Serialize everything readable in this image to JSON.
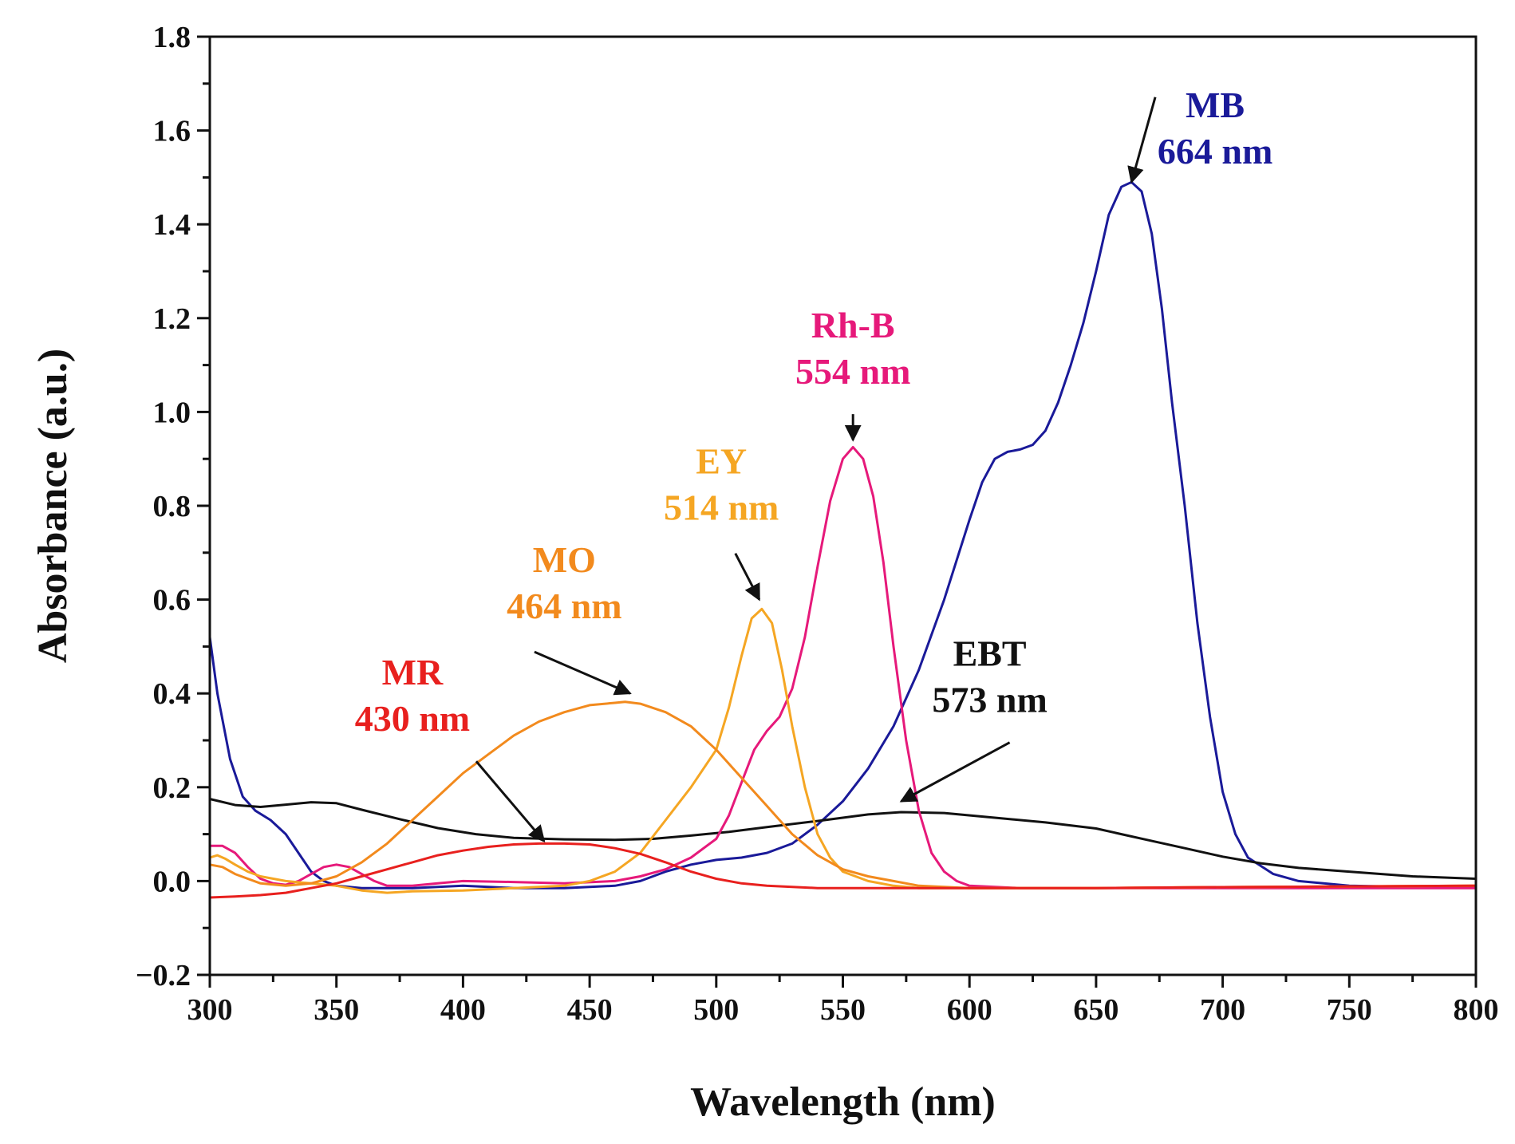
{
  "chart_data": {
    "type": "line",
    "title": "",
    "xlabel": "Wavelength (nm)",
    "ylabel": "Absorbance (a.u.)",
    "xlim": [
      300,
      800
    ],
    "ylim": [
      -0.2,
      1.8
    ],
    "x_ticks": [
      300,
      350,
      400,
      450,
      500,
      550,
      600,
      650,
      700,
      750,
      800
    ],
    "x_tick_labels": [
      "300",
      "350",
      "400",
      "450",
      "500",
      "550",
      "600",
      "650",
      "700",
      "750",
      "800"
    ],
    "y_ticks": [
      -0.2,
      0.0,
      0.2,
      0.4,
      0.6,
      0.8,
      1.0,
      1.2,
      1.4,
      1.6,
      1.8
    ],
    "y_tick_labels": [
      "−0.2",
      "0.0",
      "0.2",
      "0.4",
      "0.6",
      "0.8",
      "1.0",
      "1.2",
      "1.4",
      "1.6",
      "1.8"
    ],
    "grid": false,
    "series": [
      {
        "name": "MB",
        "color": "#1a1a99",
        "points": [
          [
            300,
            0.52
          ],
          [
            303,
            0.4
          ],
          [
            308,
            0.26
          ],
          [
            313,
            0.18
          ],
          [
            318,
            0.15
          ],
          [
            324,
            0.13
          ],
          [
            330,
            0.1
          ],
          [
            335,
            0.06
          ],
          [
            340,
            0.02
          ],
          [
            345,
            0.0
          ],
          [
            350,
            -0.01
          ],
          [
            360,
            -0.015
          ],
          [
            380,
            -0.015
          ],
          [
            400,
            -0.01
          ],
          [
            420,
            -0.015
          ],
          [
            440,
            -0.015
          ],
          [
            460,
            -0.01
          ],
          [
            470,
            0.0
          ],
          [
            480,
            0.02
          ],
          [
            490,
            0.035
          ],
          [
            500,
            0.045
          ],
          [
            510,
            0.05
          ],
          [
            520,
            0.06
          ],
          [
            530,
            0.08
          ],
          [
            540,
            0.12
          ],
          [
            550,
            0.17
          ],
          [
            560,
            0.24
          ],
          [
            570,
            0.33
          ],
          [
            580,
            0.45
          ],
          [
            590,
            0.6
          ],
          [
            600,
            0.77
          ],
          [
            605,
            0.85
          ],
          [
            610,
            0.9
          ],
          [
            615,
            0.915
          ],
          [
            620,
            0.92
          ],
          [
            625,
            0.93
          ],
          [
            630,
            0.96
          ],
          [
            635,
            1.02
          ],
          [
            640,
            1.1
          ],
          [
            645,
            1.19
          ],
          [
            650,
            1.3
          ],
          [
            655,
            1.42
          ],
          [
            660,
            1.48
          ],
          [
            664,
            1.49
          ],
          [
            668,
            1.47
          ],
          [
            672,
            1.38
          ],
          [
            676,
            1.22
          ],
          [
            680,
            1.02
          ],
          [
            685,
            0.8
          ],
          [
            690,
            0.55
          ],
          [
            695,
            0.35
          ],
          [
            700,
            0.19
          ],
          [
            705,
            0.1
          ],
          [
            710,
            0.05
          ],
          [
            720,
            0.015
          ],
          [
            730,
            0.0
          ],
          [
            750,
            -0.01
          ],
          [
            770,
            -0.012
          ],
          [
            800,
            -0.012
          ]
        ]
      },
      {
        "name": "EBT",
        "color": "#111111",
        "points": [
          [
            300,
            0.175
          ],
          [
            310,
            0.162
          ],
          [
            320,
            0.158
          ],
          [
            330,
            0.163
          ],
          [
            340,
            0.168
          ],
          [
            350,
            0.166
          ],
          [
            360,
            0.152
          ],
          [
            375,
            0.132
          ],
          [
            390,
            0.113
          ],
          [
            405,
            0.1
          ],
          [
            420,
            0.092
          ],
          [
            440,
            0.089
          ],
          [
            460,
            0.088
          ],
          [
            475,
            0.09
          ],
          [
            490,
            0.097
          ],
          [
            505,
            0.105
          ],
          [
            520,
            0.115
          ],
          [
            540,
            0.128
          ],
          [
            560,
            0.142
          ],
          [
            573,
            0.147
          ],
          [
            590,
            0.145
          ],
          [
            610,
            0.135
          ],
          [
            630,
            0.125
          ],
          [
            650,
            0.112
          ],
          [
            660,
            0.1
          ],
          [
            670,
            0.088
          ],
          [
            685,
            0.07
          ],
          [
            700,
            0.052
          ],
          [
            715,
            0.038
          ],
          [
            730,
            0.028
          ],
          [
            750,
            0.02
          ],
          [
            775,
            0.01
          ],
          [
            800,
            0.005
          ]
        ]
      },
      {
        "name": "Rh-B",
        "color": "#e6197a",
        "points": [
          [
            300,
            0.075
          ],
          [
            305,
            0.075
          ],
          [
            310,
            0.06
          ],
          [
            315,
            0.03
          ],
          [
            320,
            0.005
          ],
          [
            325,
            -0.005
          ],
          [
            330,
            -0.008
          ],
          [
            335,
            0.0
          ],
          [
            340,
            0.015
          ],
          [
            345,
            0.03
          ],
          [
            350,
            0.035
          ],
          [
            355,
            0.03
          ],
          [
            360,
            0.015
          ],
          [
            365,
            0.0
          ],
          [
            370,
            -0.01
          ],
          [
            380,
            -0.01
          ],
          [
            390,
            -0.005
          ],
          [
            400,
            0.0
          ],
          [
            420,
            -0.002
          ],
          [
            440,
            -0.005
          ],
          [
            460,
            0.0
          ],
          [
            470,
            0.01
          ],
          [
            480,
            0.025
          ],
          [
            490,
            0.05
          ],
          [
            500,
            0.09
          ],
          [
            505,
            0.14
          ],
          [
            510,
            0.21
          ],
          [
            515,
            0.28
          ],
          [
            520,
            0.32
          ],
          [
            525,
            0.35
          ],
          [
            530,
            0.41
          ],
          [
            535,
            0.52
          ],
          [
            540,
            0.67
          ],
          [
            545,
            0.81
          ],
          [
            550,
            0.9
          ],
          [
            554,
            0.925
          ],
          [
            558,
            0.9
          ],
          [
            562,
            0.82
          ],
          [
            566,
            0.68
          ],
          [
            570,
            0.5
          ],
          [
            575,
            0.3
          ],
          [
            580,
            0.15
          ],
          [
            585,
            0.06
          ],
          [
            590,
            0.02
          ],
          [
            595,
            0.0
          ],
          [
            600,
            -0.01
          ],
          [
            620,
            -0.015
          ],
          [
            650,
            -0.015
          ],
          [
            700,
            -0.015
          ],
          [
            800,
            -0.015
          ]
        ]
      },
      {
        "name": "EY",
        "color": "#f5a623",
        "points": [
          [
            300,
            0.05
          ],
          [
            303,
            0.055
          ],
          [
            306,
            0.048
          ],
          [
            310,
            0.035
          ],
          [
            315,
            0.02
          ],
          [
            320,
            0.01
          ],
          [
            330,
            0.0
          ],
          [
            340,
            -0.005
          ],
          [
            350,
            -0.01
          ],
          [
            360,
            -0.02
          ],
          [
            370,
            -0.025
          ],
          [
            380,
            -0.022
          ],
          [
            400,
            -0.02
          ],
          [
            420,
            -0.015
          ],
          [
            440,
            -0.01
          ],
          [
            450,
            0.0
          ],
          [
            460,
            0.02
          ],
          [
            470,
            0.06
          ],
          [
            480,
            0.13
          ],
          [
            490,
            0.2
          ],
          [
            500,
            0.28
          ],
          [
            505,
            0.37
          ],
          [
            510,
            0.48
          ],
          [
            514,
            0.56
          ],
          [
            518,
            0.58
          ],
          [
            522,
            0.55
          ],
          [
            526,
            0.45
          ],
          [
            530,
            0.33
          ],
          [
            535,
            0.2
          ],
          [
            540,
            0.1
          ],
          [
            545,
            0.05
          ],
          [
            550,
            0.02
          ],
          [
            560,
            0.0
          ],
          [
            570,
            -0.01
          ],
          [
            580,
            -0.015
          ],
          [
            600,
            -0.015
          ],
          [
            650,
            -0.015
          ],
          [
            700,
            -0.013
          ],
          [
            800,
            -0.01
          ]
        ]
      },
      {
        "name": "MO",
        "color": "#f28a1d",
        "points": [
          [
            300,
            0.035
          ],
          [
            305,
            0.03
          ],
          [
            310,
            0.015
          ],
          [
            315,
            0.005
          ],
          [
            320,
            -0.005
          ],
          [
            330,
            -0.01
          ],
          [
            340,
            -0.005
          ],
          [
            350,
            0.01
          ],
          [
            360,
            0.04
          ],
          [
            370,
            0.08
          ],
          [
            380,
            0.13
          ],
          [
            390,
            0.18
          ],
          [
            400,
            0.23
          ],
          [
            410,
            0.27
          ],
          [
            420,
            0.31
          ],
          [
            430,
            0.34
          ],
          [
            440,
            0.36
          ],
          [
            450,
            0.375
          ],
          [
            460,
            0.38
          ],
          [
            464,
            0.382
          ],
          [
            470,
            0.378
          ],
          [
            480,
            0.36
          ],
          [
            490,
            0.33
          ],
          [
            500,
            0.28
          ],
          [
            510,
            0.22
          ],
          [
            520,
            0.16
          ],
          [
            530,
            0.1
          ],
          [
            540,
            0.055
          ],
          [
            550,
            0.025
          ],
          [
            560,
            0.01
          ],
          [
            570,
            0.0
          ],
          [
            580,
            -0.01
          ],
          [
            600,
            -0.015
          ],
          [
            650,
            -0.015
          ],
          [
            700,
            -0.013
          ],
          [
            800,
            -0.01
          ]
        ]
      },
      {
        "name": "MR",
        "color": "#e8201e",
        "points": [
          [
            300,
            -0.035
          ],
          [
            310,
            -0.033
          ],
          [
            320,
            -0.03
          ],
          [
            330,
            -0.025
          ],
          [
            340,
            -0.015
          ],
          [
            350,
            -0.005
          ],
          [
            360,
            0.01
          ],
          [
            370,
            0.025
          ],
          [
            380,
            0.04
          ],
          [
            390,
            0.055
          ],
          [
            400,
            0.065
          ],
          [
            410,
            0.073
          ],
          [
            420,
            0.078
          ],
          [
            430,
            0.08
          ],
          [
            440,
            0.08
          ],
          [
            450,
            0.078
          ],
          [
            460,
            0.07
          ],
          [
            470,
            0.058
          ],
          [
            480,
            0.04
          ],
          [
            490,
            0.02
          ],
          [
            500,
            0.005
          ],
          [
            510,
            -0.005
          ],
          [
            520,
            -0.01
          ],
          [
            540,
            -0.015
          ],
          [
            560,
            -0.015
          ],
          [
            600,
            -0.015
          ],
          [
            650,
            -0.015
          ],
          [
            700,
            -0.013
          ],
          [
            800,
            -0.01
          ]
        ]
      }
    ],
    "annotations": [
      {
        "name": "MB",
        "line1": "MB",
        "line2": "664 nm",
        "color": "#1a1a99",
        "peak": [
          664,
          1.49
        ],
        "label_anchor": [
          697,
          1.53
        ]
      },
      {
        "name": "Rh-B",
        "line1": "Rh-B",
        "line2": "554 nm",
        "color": "#e6197a",
        "peak": [
          554,
          0.94
        ],
        "label_anchor": [
          554,
          1.06
        ]
      },
      {
        "name": "EY",
        "line1": "EY",
        "line2": "514 nm",
        "color": "#f5a623",
        "peak": [
          517,
          0.6
        ],
        "label_anchor": [
          502,
          0.77
        ]
      },
      {
        "name": "MO",
        "line1": "MO",
        "line2": "464 nm",
        "color": "#f28a1d",
        "peak": [
          466,
          0.4
        ],
        "label_anchor": [
          440,
          0.56
        ]
      },
      {
        "name": "MR",
        "line1": "MR",
        "line2": "430 nm",
        "color": "#e8201e",
        "peak": [
          432,
          0.085
        ],
        "label_anchor": [
          380,
          0.32
        ]
      },
      {
        "name": "EBT",
        "line1": "EBT",
        "line2": "573 nm",
        "color": "#111111",
        "peak": [
          573,
          0.17
        ],
        "label_anchor": [
          608,
          0.36
        ]
      }
    ]
  }
}
